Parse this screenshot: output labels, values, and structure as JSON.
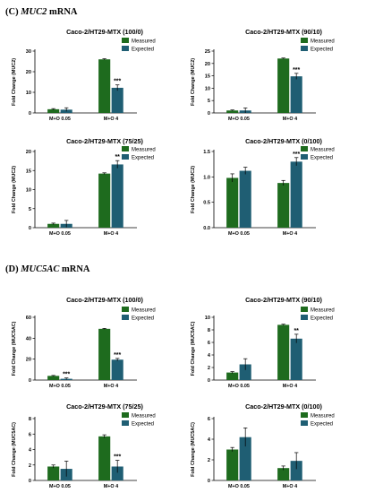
{
  "colors": {
    "measured": "#1e6b1e",
    "expected": "#1f5e73",
    "axis": "#000000"
  },
  "sections": [
    {
      "letter": "(C)",
      "gene": "MUC2",
      "suffix": "mRNA"
    },
    {
      "letter": "(D)",
      "gene": "MUC5AC",
      "suffix": "mRNA"
    }
  ],
  "legend": {
    "measured": "Measured",
    "expected": "Expected"
  },
  "chart_data": [
    {
      "type": "bar",
      "title": "Caco-2/HT29-MTX (100/0)",
      "ylabel": "Fold Change (MUC2)",
      "categories": [
        "M+O 0.05",
        "M+O 4"
      ],
      "yticks": [
        "0",
        "10",
        "20",
        "30"
      ],
      "ylim": [
        0,
        30
      ],
      "series": [
        {
          "name": "Measured",
          "values": [
            1.8,
            26.0
          ],
          "errors": [
            0.3,
            0.3
          ]
        },
        {
          "name": "Expected",
          "values": [
            1.6,
            12.2
          ],
          "errors": [
            0.9,
            1.4
          ]
        }
      ],
      "annotations": [
        "",
        "***"
      ]
    },
    {
      "type": "bar",
      "title": "Caco-2/HT29-MTX (90/10)",
      "ylabel": "Fold Change (MUC2)",
      "categories": [
        "M+O 0.05",
        "M+O 4"
      ],
      "yticks": [
        "0",
        "5",
        "10",
        "15",
        "20",
        "25"
      ],
      "ylim": [
        0,
        25
      ],
      "series": [
        {
          "name": "Measured",
          "values": [
            1.0,
            22.0
          ],
          "errors": [
            0.2,
            0.2
          ]
        },
        {
          "name": "Expected",
          "values": [
            1.0,
            14.8
          ],
          "errors": [
            1.0,
            1.2
          ]
        }
      ],
      "annotations": [
        "",
        "***"
      ]
    },
    {
      "type": "bar",
      "title": "Caco-2/HT29-MTX (75/25)",
      "ylabel": "Fold Change (MUC2)",
      "categories": [
        "M+O 0.05",
        "M+O 4"
      ],
      "yticks": [
        "0",
        "5",
        "10",
        "15",
        "20"
      ],
      "ylim": [
        0,
        20
      ],
      "series": [
        {
          "name": "Measured",
          "values": [
            1.0,
            14.2
          ],
          "errors": [
            0.2,
            0.2
          ]
        },
        {
          "name": "Expected",
          "values": [
            1.0,
            16.6
          ],
          "errors": [
            0.9,
            1.0
          ]
        }
      ],
      "annotations": [
        "",
        "**"
      ]
    },
    {
      "type": "bar",
      "title": "Caco-2/HT29-MTX (0/100)",
      "ylabel": "Fold Change (MUC2)",
      "categories": [
        "M+O 0.05",
        "M+O 4"
      ],
      "yticks": [
        "0.0",
        "0.5",
        "1.0",
        "1.5"
      ],
      "ylim": [
        0,
        1.5
      ],
      "series": [
        {
          "name": "Measured",
          "values": [
            0.98,
            0.88
          ],
          "errors": [
            0.08,
            0.05
          ]
        },
        {
          "name": "Expected",
          "values": [
            1.12,
            1.3
          ],
          "errors": [
            0.07,
            0.08
          ]
        }
      ],
      "annotations": [
        "",
        "***"
      ]
    },
    {
      "type": "bar",
      "title": "Caco-2/HT29-MTX (100/0)",
      "ylabel": "Fold Change (MUC5AC)",
      "categories": [
        "M+O 0.05",
        "M+O 4"
      ],
      "yticks": [
        "0",
        "20",
        "40",
        "60"
      ],
      "ylim": [
        0,
        60
      ],
      "series": [
        {
          "name": "Measured",
          "values": [
            4.0,
            49.0
          ],
          "errors": [
            0.4,
            0.4
          ]
        },
        {
          "name": "Expected",
          "values": [
            1.2,
            19.5
          ],
          "errors": [
            0.8,
            1.2
          ]
        }
      ],
      "annotations": [
        "***",
        "***"
      ]
    },
    {
      "type": "bar",
      "title": "Caco-2/HT29-MTX (90/10)",
      "ylabel": "Fold Change (MUC5AC)",
      "categories": [
        "M+O 0.05",
        "M+O 4"
      ],
      "yticks": [
        "0",
        "2",
        "4",
        "6",
        "8",
        "10"
      ],
      "ylim": [
        0,
        10
      ],
      "series": [
        {
          "name": "Measured",
          "values": [
            1.2,
            8.8
          ],
          "errors": [
            0.15,
            0.1
          ]
        },
        {
          "name": "Expected",
          "values": [
            2.5,
            6.6
          ],
          "errors": [
            0.9,
            0.7
          ]
        }
      ],
      "annotations": [
        "",
        "**"
      ]
    },
    {
      "type": "bar",
      "title": "Caco-2/HT29-MTX (75/25)",
      "ylabel": "Fold Change (MUC5AC)",
      "categories": [
        "M+O 0.05",
        "M+O 4"
      ],
      "yticks": [
        "0",
        "2",
        "4",
        "6",
        "8"
      ],
      "ylim": [
        0,
        8
      ],
      "series": [
        {
          "name": "Measured",
          "values": [
            1.8,
            5.7
          ],
          "errors": [
            0.2,
            0.2
          ]
        },
        {
          "name": "Expected",
          "values": [
            1.5,
            1.8
          ],
          "errors": [
            1.0,
            0.8
          ]
        }
      ],
      "annotations": [
        "",
        "***"
      ]
    },
    {
      "type": "bar",
      "title": "Caco-2/HT29-MTX (0/100)",
      "ylabel": "Fold Change (MUC5AC)",
      "categories": [
        "M+O 0.05",
        "M+O 4"
      ],
      "yticks": [
        "0",
        "2",
        "4",
        "6"
      ],
      "ylim": [
        0,
        6
      ],
      "series": [
        {
          "name": "Measured",
          "values": [
            3.0,
            1.2
          ],
          "errors": [
            0.2,
            0.2
          ]
        },
        {
          "name": "Expected",
          "values": [
            4.2,
            1.9
          ],
          "errors": [
            0.9,
            0.8
          ]
        }
      ],
      "annotations": [
        "",
        ""
      ]
    }
  ]
}
